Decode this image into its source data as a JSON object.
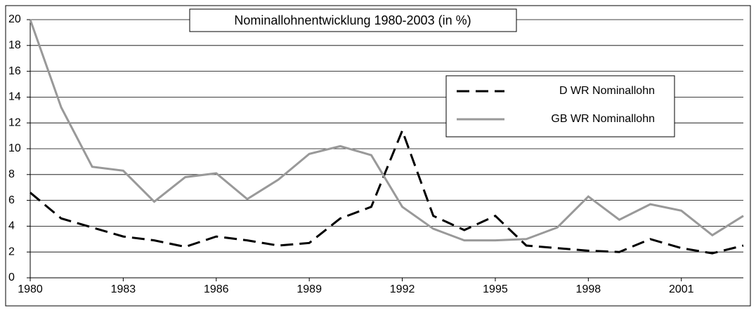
{
  "chart_data": {
    "type": "line",
    "title": "Nominallohnentwicklung 1980-2003 (in %)",
    "x": [
      1980,
      1981,
      1982,
      1983,
      1984,
      1985,
      1986,
      1987,
      1988,
      1989,
      1990,
      1991,
      1992,
      1993,
      1994,
      1995,
      1996,
      1997,
      1998,
      1999,
      2000,
      2001,
      2002,
      2003
    ],
    "series": [
      {
        "name": "D WR Nominallohn",
        "color": "#000000",
        "dashed": true,
        "values": [
          6.6,
          4.6,
          3.9,
          3.2,
          2.9,
          2.4,
          3.2,
          2.9,
          2.5,
          2.7,
          4.6,
          5.5,
          11.4,
          4.8,
          3.7,
          4.8,
          2.5,
          2.3,
          2.1,
          2.0,
          3.0,
          2.3,
          1.9,
          2.5
        ]
      },
      {
        "name": "GB WR Nominallohn",
        "color": "#999999",
        "dashed": false,
        "values": [
          20,
          13.2,
          8.6,
          8.3,
          5.9,
          7.8,
          8.1,
          6.1,
          7.6,
          9.6,
          10.2,
          9.5,
          5.5,
          3.8,
          2.9,
          2.9,
          3.0,
          3.9,
          6.3,
          4.5,
          5.7,
          5.2,
          3.3,
          4.8
        ]
      }
    ],
    "xlim": [
      1980,
      2003
    ],
    "xticks": [
      1980,
      1983,
      1986,
      1989,
      1992,
      1995,
      1998,
      2001
    ],
    "ylim": [
      0,
      20
    ],
    "yticks": [
      0,
      2,
      4,
      6,
      8,
      10,
      12,
      14,
      16,
      18,
      20
    ],
    "grid": true,
    "legend": "upper right"
  }
}
